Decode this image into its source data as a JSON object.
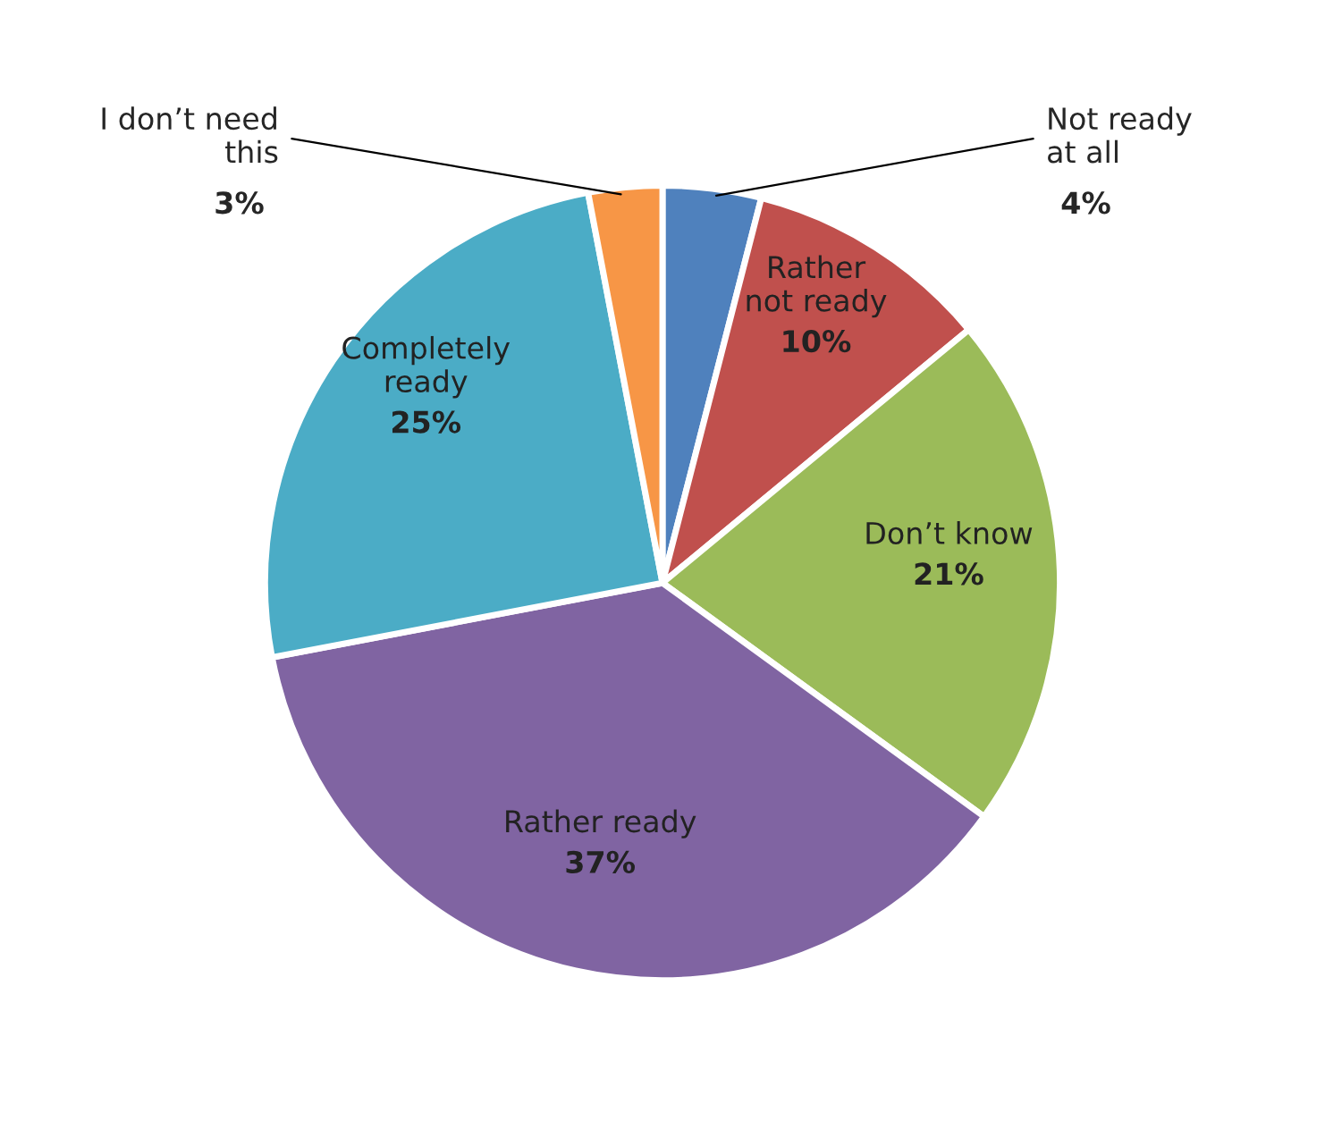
{
  "chart_data": {
    "type": "pie",
    "categories": [
      "Not ready\nat all",
      "Rather\nnot ready",
      "Don’t know",
      "Rather ready",
      "Completely\nready",
      "I don’t need\nthis"
    ],
    "values": [
      4,
      10,
      21,
      37,
      25,
      3
    ],
    "value_labels": [
      "4%",
      "10%",
      "21%",
      "37%",
      "25%",
      "3%"
    ],
    "colors": [
      "#4f81bd",
      "#c0504d",
      "#9bbb59",
      "#8064a2",
      "#4bacc6",
      "#f79646"
    ],
    "legend": false
  }
}
